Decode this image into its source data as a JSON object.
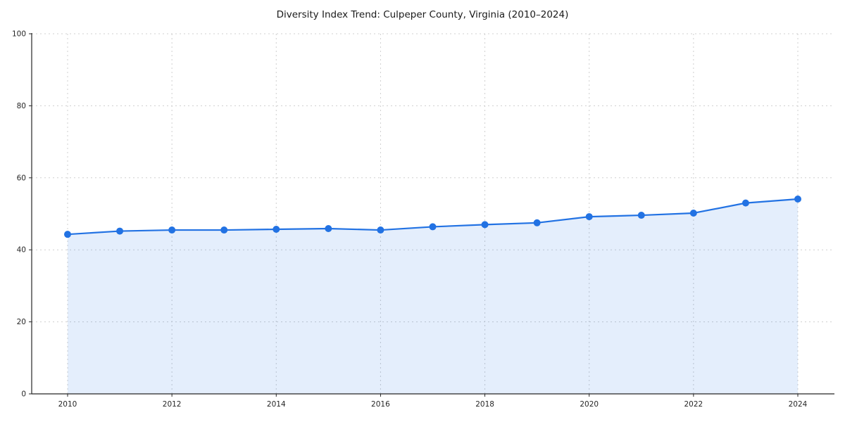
{
  "chart_data": {
    "type": "line",
    "title": "Diversity Index Trend: Culpeper County, Virginia (2010–2024)",
    "series_name": "Diversity Index",
    "x": [
      2010,
      2011,
      2012,
      2013,
      2014,
      2015,
      2016,
      2017,
      2018,
      2019,
      2020,
      2021,
      2022,
      2023,
      2024
    ],
    "values": [
      44.3,
      45.2,
      45.5,
      45.5,
      45.7,
      45.9,
      45.5,
      46.4,
      47.0,
      47.5,
      49.2,
      49.6,
      50.2,
      53.0,
      54.1
    ],
    "xticks": [
      2010,
      2012,
      2014,
      2016,
      2018,
      2020,
      2022,
      2024
    ],
    "yticks": [
      0,
      20,
      40,
      60,
      80,
      100
    ],
    "ylim": [
      0,
      100
    ],
    "grid": "dashed",
    "legend": "none",
    "line_color": "#2272e3",
    "marker_color": "#2272e3",
    "fill_color": "#2272e3",
    "fill_opacity": 0.12,
    "grid_color": "#cfcfcf",
    "spine_color": "#262626",
    "tick_label_color": "#262626",
    "background": "#ffffff"
  }
}
